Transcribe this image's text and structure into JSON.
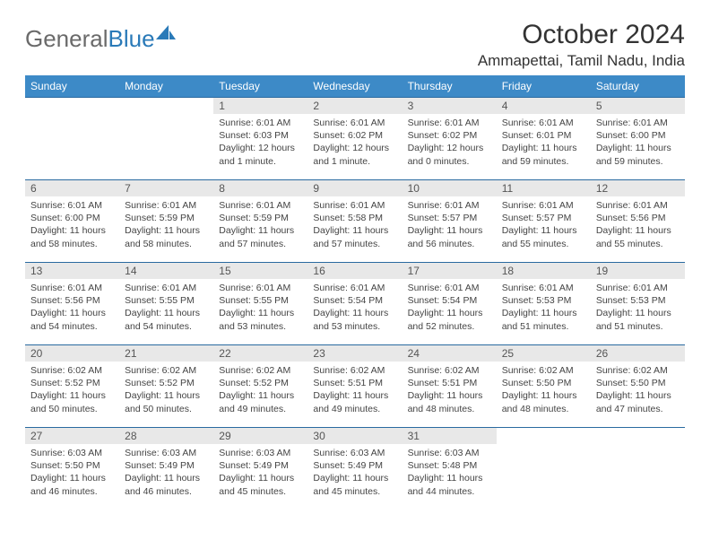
{
  "brand": {
    "part1": "General",
    "part2": "Blue"
  },
  "title": "October 2024",
  "location": "Ammapettai, Tamil Nadu, India",
  "colors": {
    "header_bg": "#3d8ac7",
    "header_text": "#ffffff",
    "daynum_bg": "#e8e8e8",
    "row_border": "#2a6aa0",
    "logo_gray": "#6a6a6a",
    "logo_blue": "#2a7ab8"
  },
  "weekdays": [
    "Sunday",
    "Monday",
    "Tuesday",
    "Wednesday",
    "Thursday",
    "Friday",
    "Saturday"
  ],
  "weeks": [
    [
      {
        "n": "",
        "text": ""
      },
      {
        "n": "",
        "text": ""
      },
      {
        "n": "1",
        "text": "Sunrise: 6:01 AM\nSunset: 6:03 PM\nDaylight: 12 hours and 1 minute."
      },
      {
        "n": "2",
        "text": "Sunrise: 6:01 AM\nSunset: 6:02 PM\nDaylight: 12 hours and 1 minute."
      },
      {
        "n": "3",
        "text": "Sunrise: 6:01 AM\nSunset: 6:02 PM\nDaylight: 12 hours and 0 minutes."
      },
      {
        "n": "4",
        "text": "Sunrise: 6:01 AM\nSunset: 6:01 PM\nDaylight: 11 hours and 59 minutes."
      },
      {
        "n": "5",
        "text": "Sunrise: 6:01 AM\nSunset: 6:00 PM\nDaylight: 11 hours and 59 minutes."
      }
    ],
    [
      {
        "n": "6",
        "text": "Sunrise: 6:01 AM\nSunset: 6:00 PM\nDaylight: 11 hours and 58 minutes."
      },
      {
        "n": "7",
        "text": "Sunrise: 6:01 AM\nSunset: 5:59 PM\nDaylight: 11 hours and 58 minutes."
      },
      {
        "n": "8",
        "text": "Sunrise: 6:01 AM\nSunset: 5:59 PM\nDaylight: 11 hours and 57 minutes."
      },
      {
        "n": "9",
        "text": "Sunrise: 6:01 AM\nSunset: 5:58 PM\nDaylight: 11 hours and 57 minutes."
      },
      {
        "n": "10",
        "text": "Sunrise: 6:01 AM\nSunset: 5:57 PM\nDaylight: 11 hours and 56 minutes."
      },
      {
        "n": "11",
        "text": "Sunrise: 6:01 AM\nSunset: 5:57 PM\nDaylight: 11 hours and 55 minutes."
      },
      {
        "n": "12",
        "text": "Sunrise: 6:01 AM\nSunset: 5:56 PM\nDaylight: 11 hours and 55 minutes."
      }
    ],
    [
      {
        "n": "13",
        "text": "Sunrise: 6:01 AM\nSunset: 5:56 PM\nDaylight: 11 hours and 54 minutes."
      },
      {
        "n": "14",
        "text": "Sunrise: 6:01 AM\nSunset: 5:55 PM\nDaylight: 11 hours and 54 minutes."
      },
      {
        "n": "15",
        "text": "Sunrise: 6:01 AM\nSunset: 5:55 PM\nDaylight: 11 hours and 53 minutes."
      },
      {
        "n": "16",
        "text": "Sunrise: 6:01 AM\nSunset: 5:54 PM\nDaylight: 11 hours and 53 minutes."
      },
      {
        "n": "17",
        "text": "Sunrise: 6:01 AM\nSunset: 5:54 PM\nDaylight: 11 hours and 52 minutes."
      },
      {
        "n": "18",
        "text": "Sunrise: 6:01 AM\nSunset: 5:53 PM\nDaylight: 11 hours and 51 minutes."
      },
      {
        "n": "19",
        "text": "Sunrise: 6:01 AM\nSunset: 5:53 PM\nDaylight: 11 hours and 51 minutes."
      }
    ],
    [
      {
        "n": "20",
        "text": "Sunrise: 6:02 AM\nSunset: 5:52 PM\nDaylight: 11 hours and 50 minutes."
      },
      {
        "n": "21",
        "text": "Sunrise: 6:02 AM\nSunset: 5:52 PM\nDaylight: 11 hours and 50 minutes."
      },
      {
        "n": "22",
        "text": "Sunrise: 6:02 AM\nSunset: 5:52 PM\nDaylight: 11 hours and 49 minutes."
      },
      {
        "n": "23",
        "text": "Sunrise: 6:02 AM\nSunset: 5:51 PM\nDaylight: 11 hours and 49 minutes."
      },
      {
        "n": "24",
        "text": "Sunrise: 6:02 AM\nSunset: 5:51 PM\nDaylight: 11 hours and 48 minutes."
      },
      {
        "n": "25",
        "text": "Sunrise: 6:02 AM\nSunset: 5:50 PM\nDaylight: 11 hours and 48 minutes."
      },
      {
        "n": "26",
        "text": "Sunrise: 6:02 AM\nSunset: 5:50 PM\nDaylight: 11 hours and 47 minutes."
      }
    ],
    [
      {
        "n": "27",
        "text": "Sunrise: 6:03 AM\nSunset: 5:50 PM\nDaylight: 11 hours and 46 minutes."
      },
      {
        "n": "28",
        "text": "Sunrise: 6:03 AM\nSunset: 5:49 PM\nDaylight: 11 hours and 46 minutes."
      },
      {
        "n": "29",
        "text": "Sunrise: 6:03 AM\nSunset: 5:49 PM\nDaylight: 11 hours and 45 minutes."
      },
      {
        "n": "30",
        "text": "Sunrise: 6:03 AM\nSunset: 5:49 PM\nDaylight: 11 hours and 45 minutes."
      },
      {
        "n": "31",
        "text": "Sunrise: 6:03 AM\nSunset: 5:48 PM\nDaylight: 11 hours and 44 minutes."
      },
      {
        "n": "",
        "text": ""
      },
      {
        "n": "",
        "text": ""
      }
    ]
  ]
}
